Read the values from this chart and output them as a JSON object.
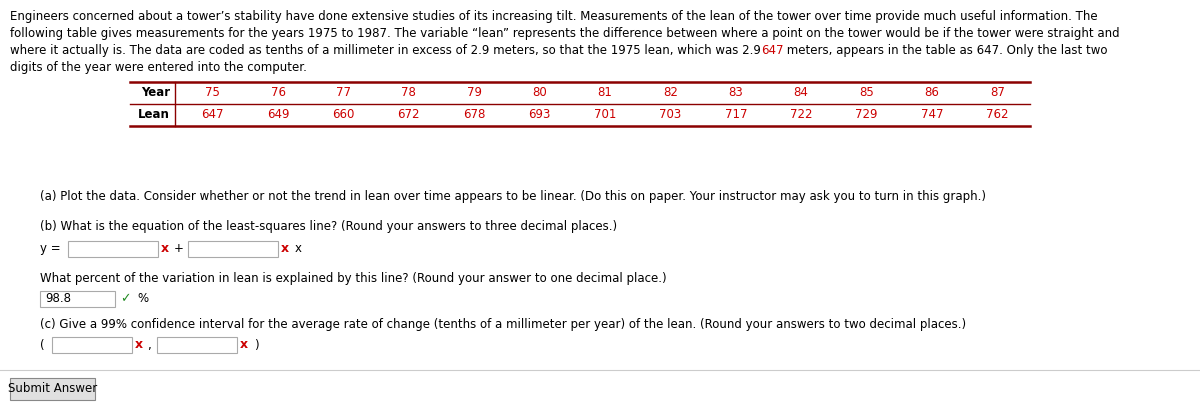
{
  "background_color": "#ffffff",
  "text_color": "#000000",
  "red_color": "#cc0000",
  "green_color": "#228B22",
  "para_line1": "Engineers concerned about a tower’s stability have done extensive studies of its increasing tilt. Measurements of the lean of the tower over time provide much useful information. The",
  "para_line2": "following table gives measurements for the years 1975 to 1987. The variable “lean” represents the difference between where a point on the tower would be if the tower were straight and",
  "para_line3": "where it actually is. The data are coded as tenths of a millimeter in excess of 2.9 meters, so that the 1975 lean, which was 2.9647 meters, appears in the table as 647. Only the last two",
  "para_line4": "digits of the year were entered into the computer.",
  "highlighted_value": "647",
  "years": [
    "75",
    "76",
    "77",
    "78",
    "79",
    "80",
    "81",
    "82",
    "83",
    "84",
    "85",
    "86",
    "87"
  ],
  "leans": [
    "647",
    "649",
    "660",
    "672",
    "678",
    "693",
    "701",
    "703",
    "717",
    "722",
    "729",
    "747",
    "762"
  ],
  "year_label": "Year",
  "lean_label": "Lean",
  "part_a_text": "(a) Plot the data. Consider whether or not the trend in lean over time appears to be linear. (Do this on paper. Your instructor may ask you to turn in this graph.)",
  "part_b_label": "(b) What is the equation of the least-squares line? (Round your answers to three decimal places.)",
  "percent_label": "What percent of the variation in lean is explained by this line? (Round your answer to one decimal place.)",
  "percent_value": "98.8",
  "part_c_label": "(c) Give a 99% confidence interval for the average rate of change (tenths of a millimeter per year) of the lean. (Round your answers to two decimal places.)",
  "submit_label": "Submit Answer",
  "font_size_body": 8.5,
  "font_size_bold": 8.5,
  "input_box_color": "#ffffff",
  "input_border_color": "#aaaaaa",
  "table_line_color": "#8B0000",
  "separator_color": "#cccccc"
}
